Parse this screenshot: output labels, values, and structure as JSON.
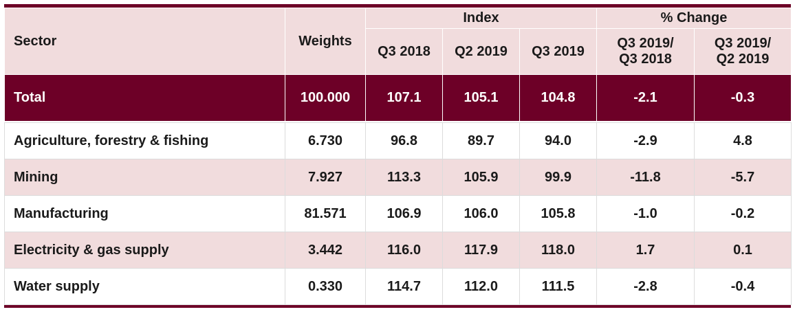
{
  "colors": {
    "accent": "#6d0027",
    "shade": "#f1dcdd"
  },
  "header": {
    "sector": "Sector",
    "weights": "Weights",
    "index": "Index",
    "pct_change": "% Change",
    "q3_2018": "Q3 2018",
    "q2_2019": "Q2 2019",
    "q3_2019": "Q3 2019",
    "chg_yoy_line1": "Q3 2019/",
    "chg_yoy_line2": "Q3 2018",
    "chg_qoq_line1": "Q3 2019/",
    "chg_qoq_line2": "Q2 2019"
  },
  "total": {
    "sector": "Total",
    "weight": "100.000",
    "q3_2018": "107.1",
    "q2_2019": "105.1",
    "q3_2019": "104.8",
    "chg_yoy": "-2.1",
    "chg_qoq": "-0.3"
  },
  "rows": [
    {
      "sector": "Agriculture, forestry & fishing",
      "weight": "6.730",
      "q3_2018": "96.8",
      "q2_2019": "89.7",
      "q3_2019": "94.0",
      "chg_yoy": "-2.9",
      "chg_qoq": "4.8"
    },
    {
      "sector": "Mining",
      "weight": "7.927",
      "q3_2018": "113.3",
      "q2_2019": "105.9",
      "q3_2019": "99.9",
      "chg_yoy": "-11.8",
      "chg_qoq": "-5.7"
    },
    {
      "sector": "Manufacturing",
      "weight": "81.571",
      "q3_2018": "106.9",
      "q2_2019": "106.0",
      "q3_2019": "105.8",
      "chg_yoy": "-1.0",
      "chg_qoq": "-0.2"
    },
    {
      "sector": "Electricity & gas supply",
      "weight": "3.442",
      "q3_2018": "116.0",
      "q2_2019": "117.9",
      "q3_2019": "118.0",
      "chg_yoy": "1.7",
      "chg_qoq": "0.1"
    },
    {
      "sector": "Water supply",
      "weight": "0.330",
      "q3_2018": "114.7",
      "q2_2019": "112.0",
      "q3_2019": "111.5",
      "chg_yoy": "-2.8",
      "chg_qoq": "-0.4"
    }
  ]
}
